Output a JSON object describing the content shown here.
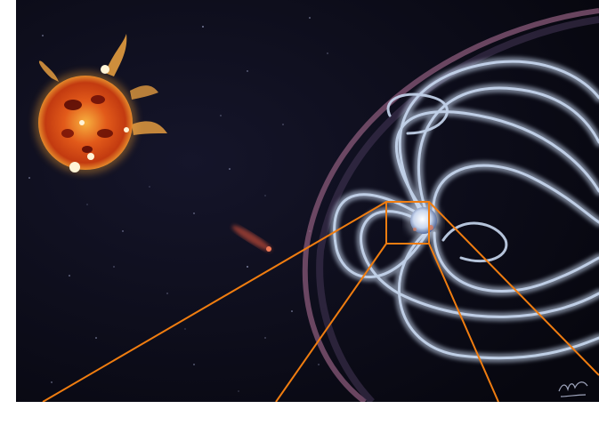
{
  "image": {
    "subject": "sun-and-magnetosphere-illustration",
    "colors": {
      "space": "#0b0b1c",
      "sun_core": "#d24814",
      "sun_glow": "#f3a13b",
      "field_lines": "#c8d8f0",
      "bow_shock": "#8a5a7a",
      "zoom_lines": "#f07d10",
      "earth": "#e8eef8"
    },
    "signature": "Meyer"
  }
}
